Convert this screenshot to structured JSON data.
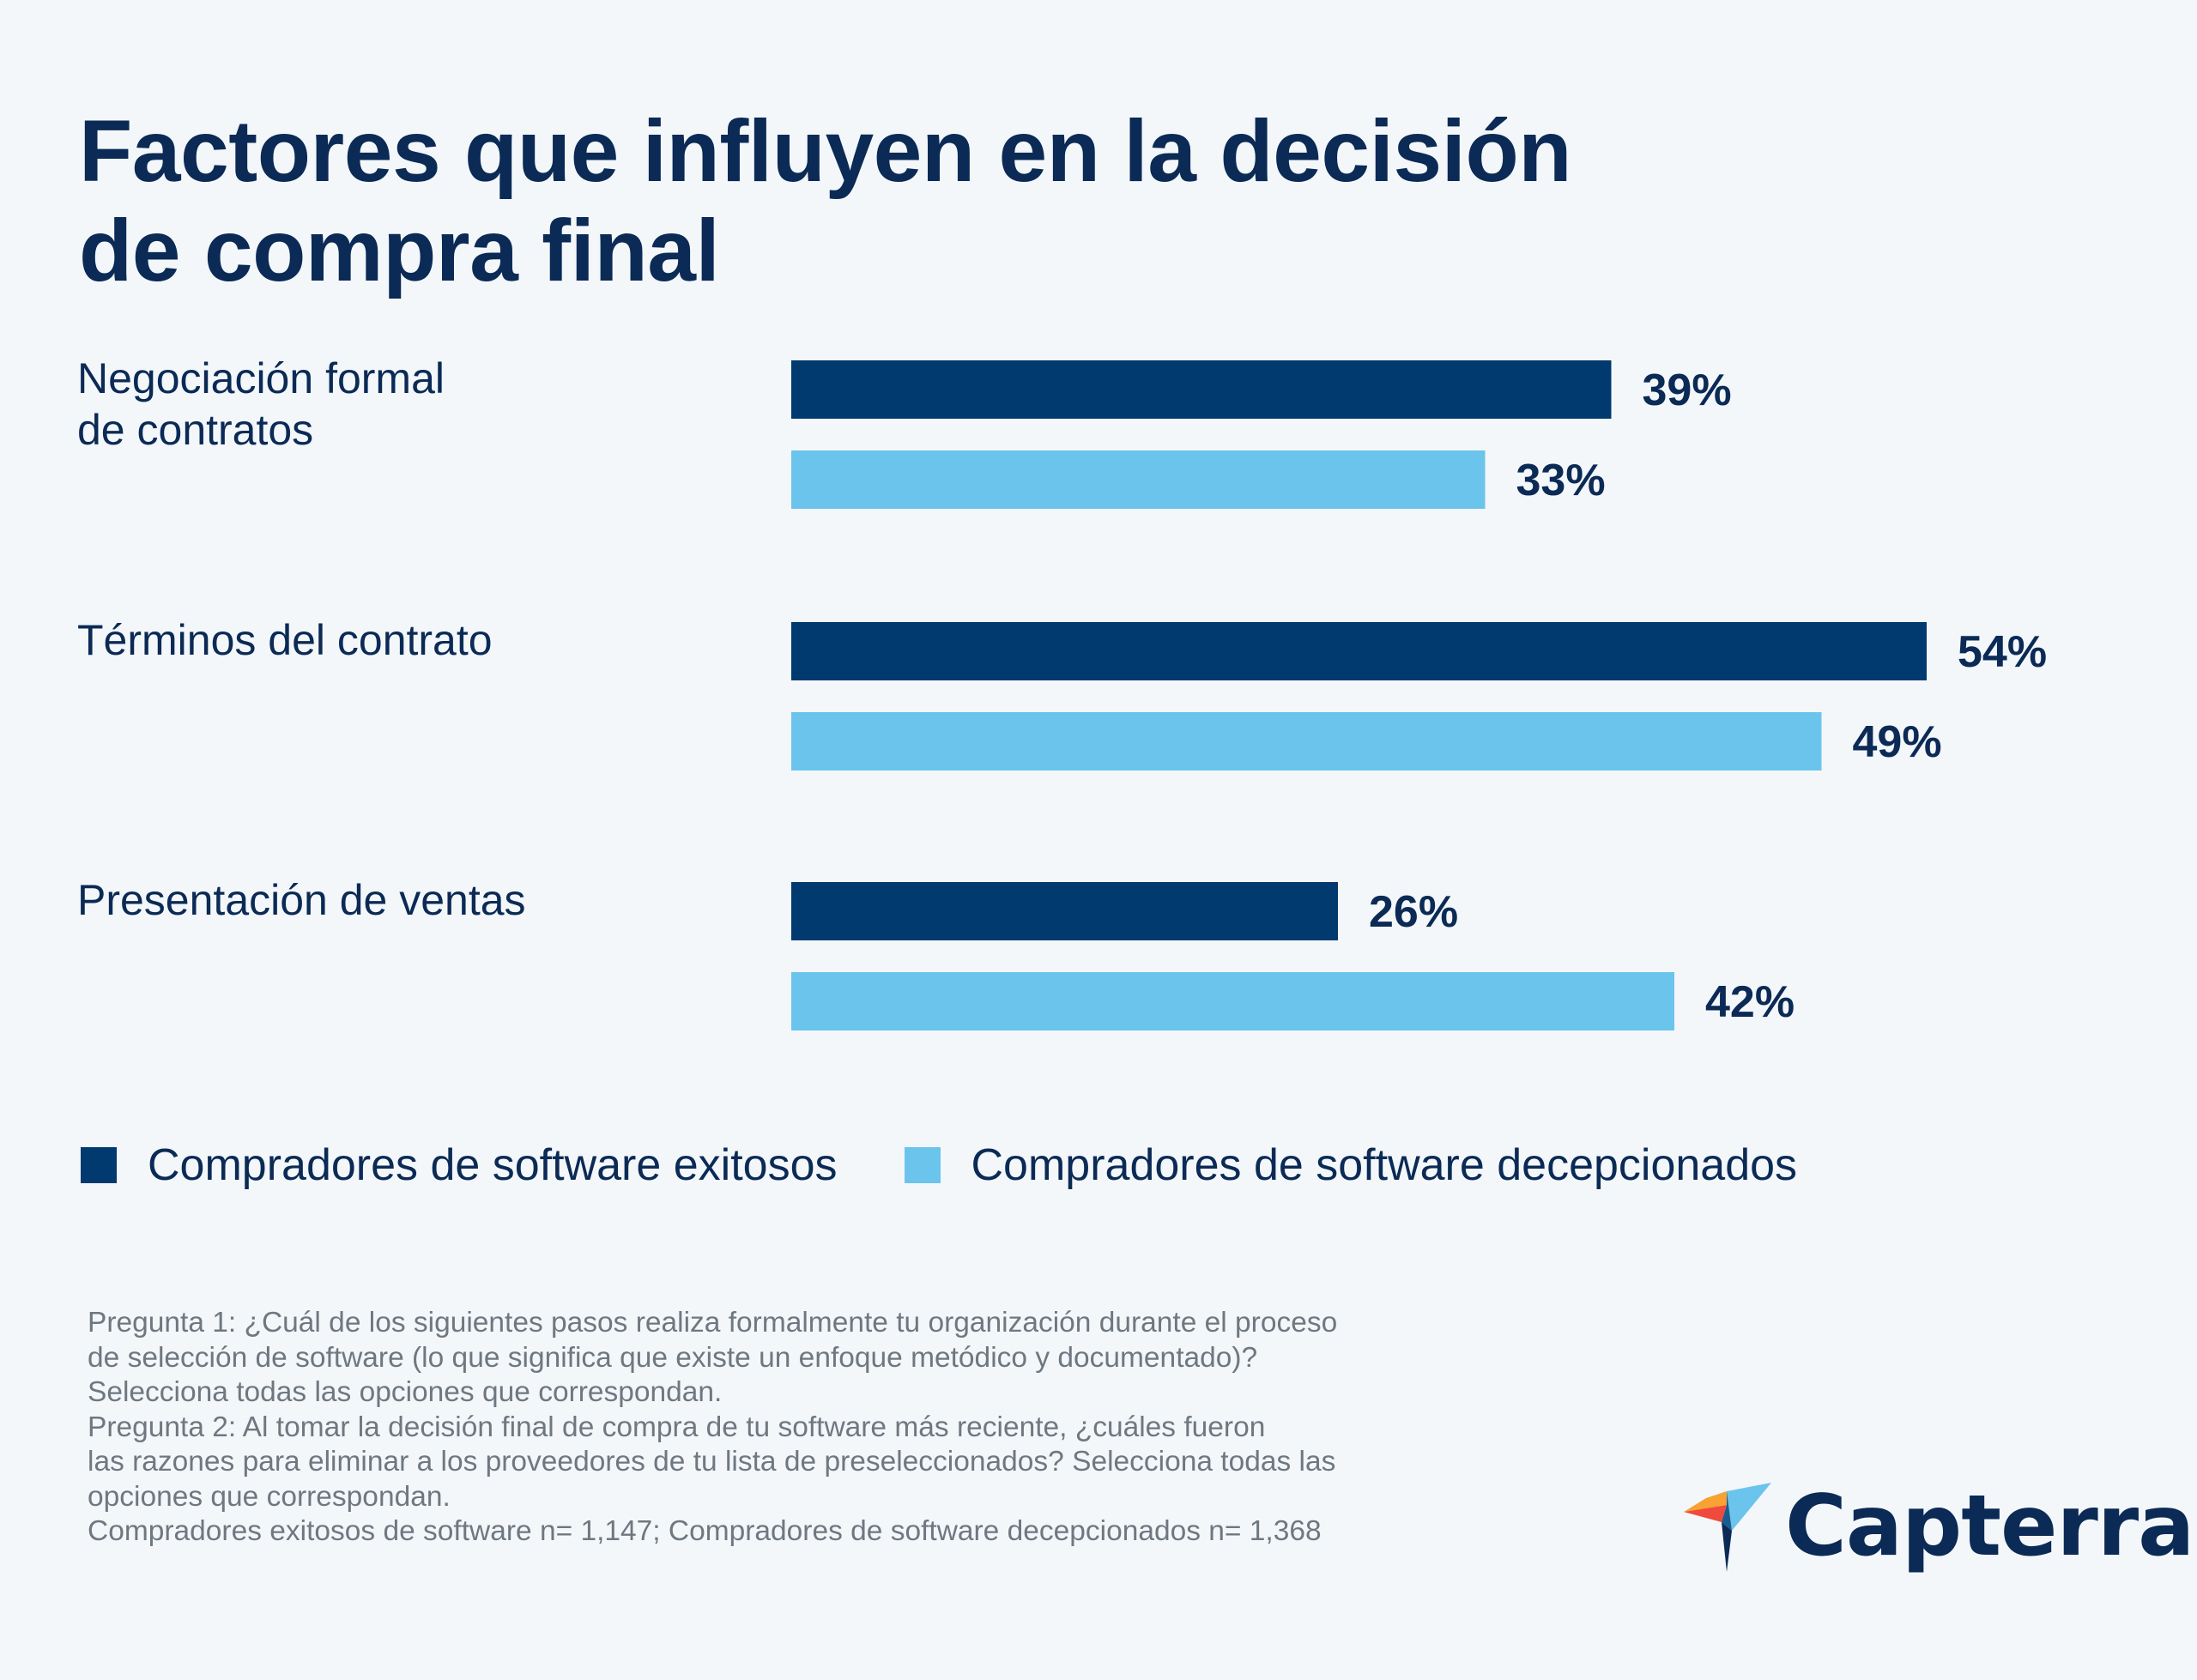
{
  "title_lines": [
    "Factores que influyen en la decisión",
    "de compra final"
  ],
  "colors": {
    "background": "#f3f7fa",
    "text": "#0b2a55",
    "series_dark": "#003a6e",
    "series_light": "#6bc4ec",
    "note_text": "#6f7780"
  },
  "chart_data": {
    "type": "bar",
    "orientation": "horizontal",
    "categories": [
      [
        "Negociación formal",
        "de contratos"
      ],
      [
        "Términos del contrato"
      ],
      [
        "Presentación de ventas"
      ]
    ],
    "series": [
      {
        "name": "Compradores de software exitosos",
        "color": "#003a6e",
        "values": [
          39,
          54,
          26
        ],
        "labels": [
          "39%",
          "54%",
          "26%"
        ]
      },
      {
        "name": "Compradores de software decepcionados",
        "color": "#6bc4ec",
        "values": [
          33,
          49,
          42
        ],
        "labels": [
          "33%",
          "49%",
          "42%"
        ]
      }
    ],
    "value_unit": "%",
    "xlim": [
      0,
      100
    ],
    "grid": false,
    "legend_position": "bottom-left"
  },
  "legend": [
    {
      "label": "Compradores de software exitosos",
      "color": "#003a6e"
    },
    {
      "label": "Compradores de software decepcionados",
      "color": "#6bc4ec"
    }
  ],
  "notes": [
    "Pregunta 1: ¿Cuál de los siguientes pasos realiza formalmente tu organización durante el proceso",
    "de selección de software (lo que significa que existe un enfoque metódico y documentado)?",
    "Selecciona todas las opciones que correspondan.",
    "Pregunta 2: Al tomar la decisión final de compra de tu software más reciente, ¿cuáles fueron",
    "las razones para eliminar a los proveedores de tu lista de preseleccionados? Selecciona todas las",
    "opciones que correspondan.",
    "Compradores exitosos de software n= 1,147; Compradores de software decepcionados n= 1,368"
  ],
  "logo": {
    "text": "Capterra",
    "icon": "capterra-arrow-icon"
  }
}
